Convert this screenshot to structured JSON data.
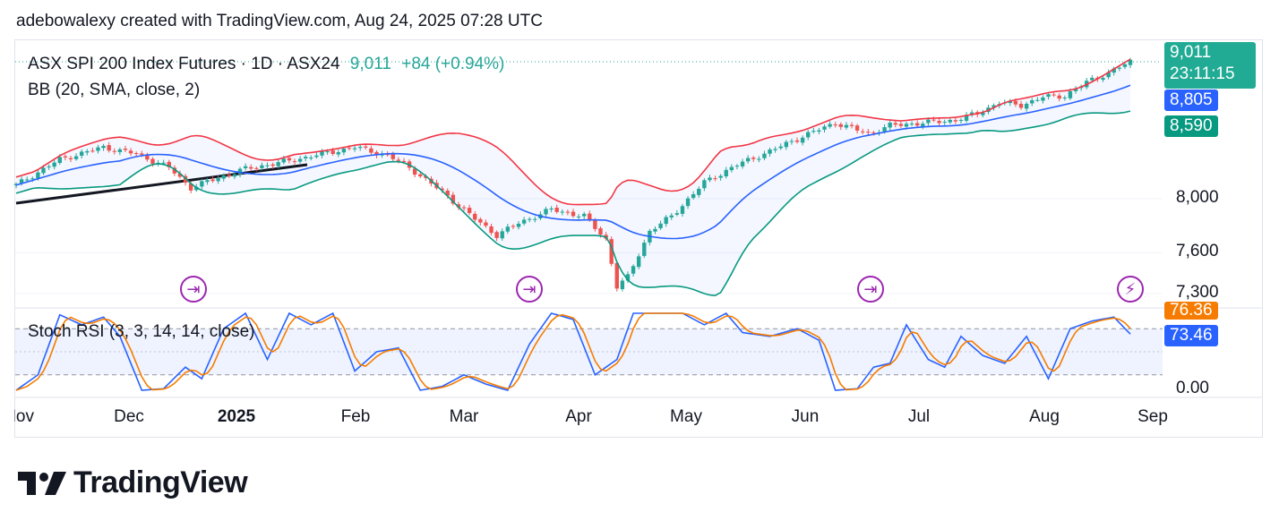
{
  "header": {
    "text": "adebowalexy created with TradingView.com, Aug 24, 2025 07:28 UTC"
  },
  "legend": {
    "symbol": "ASX SPI 200 Index Futures · 1D · ASX24",
    "price": "9,011",
    "change": "+84 (+0.94%)",
    "bb": "BB (20, SMA, close, 2)",
    "rsi": "Stoch RSI (3, 3, 14, 14, close)"
  },
  "badges": {
    "last_price": "9,011",
    "countdown": "23:11:15",
    "bb_middle": "8,805",
    "bb_lower": "8,590",
    "rsi_d": "76.36",
    "rsi_k": "73.46"
  },
  "colors": {
    "up": "#26a69a",
    "down": "#ef5350",
    "bb_upper": "#f23645",
    "bb_middle": "#2962ff",
    "bb_lower": "#089981",
    "rsi_k": "#2962ff",
    "rsi_d": "#f57c00",
    "event": "#9c27b0"
  },
  "chart_data": {
    "type": "candlestick",
    "title": "ASX SPI 200 Index Futures · 1D · ASX24",
    "price_axis": {
      "ticks": [
        "8,000",
        "7,600",
        "7,300"
      ],
      "tick_values": [
        8000,
        7600,
        7300
      ],
      "range": [
        7200,
        9150
      ]
    },
    "time_axis": {
      "ticks": [
        {
          "label": "Nov",
          "bold": false
        },
        {
          "label": "Dec",
          "bold": false
        },
        {
          "label": "2025",
          "bold": true
        },
        {
          "label": "Feb",
          "bold": false
        },
        {
          "label": "Mar",
          "bold": false
        },
        {
          "label": "Apr",
          "bold": false
        },
        {
          "label": "May",
          "bold": false
        },
        {
          "label": "Jun",
          "bold": false
        },
        {
          "label": "Jul",
          "bold": false
        },
        {
          "label": "Aug",
          "bold": false
        },
        {
          "label": "Sep",
          "bold": false
        }
      ]
    },
    "close_keypoints": [
      [
        0,
        8100
      ],
      [
        8,
        8290
      ],
      [
        16,
        8380
      ],
      [
        22,
        8330
      ],
      [
        28,
        8230
      ],
      [
        32,
        8080
      ],
      [
        36,
        8140
      ],
      [
        42,
        8220
      ],
      [
        50,
        8280
      ],
      [
        56,
        8330
      ],
      [
        62,
        8380
      ],
      [
        68,
        8320
      ],
      [
        72,
        8230
      ],
      [
        78,
        8050
      ],
      [
        84,
        7850
      ],
      [
        88,
        7730
      ],
      [
        92,
        7820
      ],
      [
        98,
        7920
      ],
      [
        104,
        7870
      ],
      [
        108,
        7700
      ],
      [
        110,
        7350
      ],
      [
        112,
        7420
      ],
      [
        116,
        7760
      ],
      [
        120,
        7870
      ],
      [
        126,
        8120
      ],
      [
        132,
        8250
      ],
      [
        138,
        8350
      ],
      [
        144,
        8460
      ],
      [
        150,
        8560
      ],
      [
        156,
        8480
      ],
      [
        160,
        8540
      ],
      [
        166,
        8560
      ],
      [
        172,
        8580
      ],
      [
        176,
        8630
      ],
      [
        180,
        8710
      ],
      [
        184,
        8690
      ],
      [
        188,
        8750
      ],
      [
        192,
        8760
      ],
      [
        196,
        8860
      ],
      [
        200,
        8930
      ],
      [
        204,
        9011
      ]
    ],
    "bb_bars_total": 205,
    "stoch_rsi": {
      "range": [
        0,
        100
      ],
      "levels": [
        80,
        50,
        20
      ],
      "axis_labels": [
        "0.00"
      ],
      "k_keypoints": [
        [
          0,
          0
        ],
        [
          4,
          20
        ],
        [
          8,
          98
        ],
        [
          12,
          85
        ],
        [
          16,
          95
        ],
        [
          19,
          70
        ],
        [
          23,
          0
        ],
        [
          27,
          2
        ],
        [
          31,
          30
        ],
        [
          34,
          15
        ],
        [
          38,
          80
        ],
        [
          42,
          100
        ],
        [
          46,
          40
        ],
        [
          50,
          100
        ],
        [
          54,
          85
        ],
        [
          58,
          100
        ],
        [
          62,
          25
        ],
        [
          66,
          50
        ],
        [
          70,
          55
        ],
        [
          74,
          0
        ],
        [
          78,
          5
        ],
        [
          82,
          20
        ],
        [
          86,
          8
        ],
        [
          90,
          0
        ],
        [
          94,
          60
        ],
        [
          98,
          100
        ],
        [
          102,
          92
        ],
        [
          106,
          20
        ],
        [
          110,
          40
        ],
        [
          113,
          100
        ],
        [
          118,
          100
        ],
        [
          122,
          100
        ],
        [
          126,
          85
        ],
        [
          130,
          100
        ],
        [
          133,
          75
        ],
        [
          138,
          70
        ],
        [
          143,
          80
        ],
        [
          147,
          65
        ],
        [
          150,
          0
        ],
        [
          154,
          2
        ],
        [
          157,
          30
        ],
        [
          160,
          35
        ],
        [
          163,
          85
        ],
        [
          167,
          40
        ],
        [
          170,
          30
        ],
        [
          173,
          70
        ],
        [
          177,
          45
        ],
        [
          181,
          35
        ],
        [
          185,
          70
        ],
        [
          189,
          15
        ],
        [
          193,
          80
        ],
        [
          197,
          90
        ],
        [
          201,
          95
        ],
        [
          204,
          73
        ]
      ]
    }
  }
}
